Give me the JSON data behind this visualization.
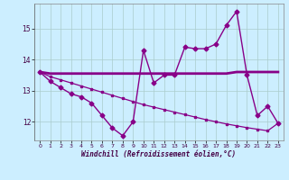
{
  "xlabel": "Windchill (Refroidissement éolien,°C)",
  "background_color": "#cceeff",
  "grid_color": "#aadddd",
  "line_color": "#880088",
  "hours": [
    0,
    1,
    2,
    3,
    4,
    5,
    6,
    7,
    8,
    9,
    10,
    11,
    12,
    13,
    14,
    15,
    16,
    17,
    18,
    19,
    20,
    21,
    22,
    23
  ],
  "series1": [
    13.6,
    13.3,
    13.1,
    12.9,
    12.8,
    12.6,
    12.2,
    11.8,
    11.55,
    12.0,
    14.3,
    13.25,
    13.5,
    13.5,
    14.4,
    14.35,
    14.35,
    14.5,
    15.1,
    15.55,
    13.5,
    12.2,
    12.5,
    11.95
  ],
  "series2": [
    13.6,
    13.55,
    13.55,
    13.55,
    13.55,
    13.55,
    13.55,
    13.55,
    13.55,
    13.55,
    13.55,
    13.55,
    13.55,
    13.55,
    13.55,
    13.55,
    13.55,
    13.55,
    13.55,
    13.6,
    13.6,
    13.6,
    13.6,
    13.6
  ],
  "series3": [
    13.6,
    13.45,
    13.35,
    13.25,
    13.15,
    13.05,
    12.95,
    12.85,
    12.75,
    12.65,
    12.55,
    12.47,
    12.39,
    12.31,
    12.23,
    12.15,
    12.07,
    12.0,
    11.93,
    11.87,
    11.81,
    11.76,
    11.71,
    11.95
  ],
  "ylim": [
    11.4,
    15.8
  ],
  "yticks": [
    12,
    13,
    14,
    15
  ],
  "xticks": [
    0,
    1,
    2,
    3,
    4,
    5,
    6,
    7,
    8,
    9,
    10,
    11,
    12,
    13,
    14,
    15,
    16,
    17,
    18,
    19,
    20,
    21,
    22,
    23
  ]
}
